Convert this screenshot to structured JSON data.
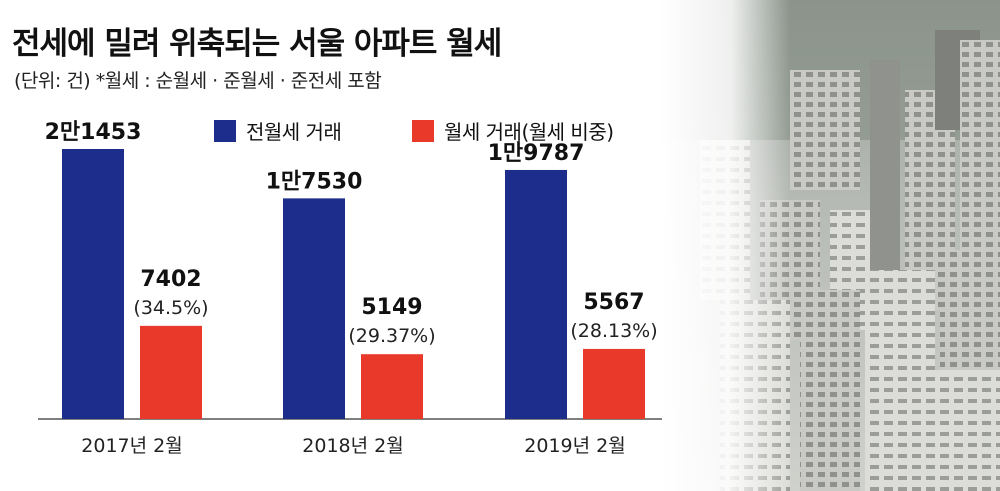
{
  "chart_data": {
    "type": "bar",
    "title": "전세에 밀려 위축되는 서울 아파트 월세",
    "subtitle": "(단위: 건)  *월세 : 순월세 · 준월세 · 준전세 포함",
    "categories": [
      "2017년 2월",
      "2018년 2월",
      "2019년 2월"
    ],
    "series": [
      {
        "name": "전월세 거래",
        "color": "#1c2d8c",
        "values": [
          21453,
          17530,
          19787
        ],
        "labels": [
          "2만1453",
          "1만7530",
          "1만9787"
        ]
      },
      {
        "name": "월세 거래(월세 비중)",
        "color": "#e8392a",
        "values": [
          7402,
          5149,
          5567
        ],
        "labels": [
          "7402",
          "5149",
          "5567"
        ],
        "shares": [
          "(34.5%)",
          "(29.37%)",
          "(28.13%)"
        ]
      }
    ],
    "ylim": [
      0,
      25000
    ],
    "grid": false,
    "legend_position": "top"
  },
  "colors": {
    "rental_total": "#1c2d8c",
    "monthly_rent": "#e8392a",
    "axis": "#555555"
  }
}
